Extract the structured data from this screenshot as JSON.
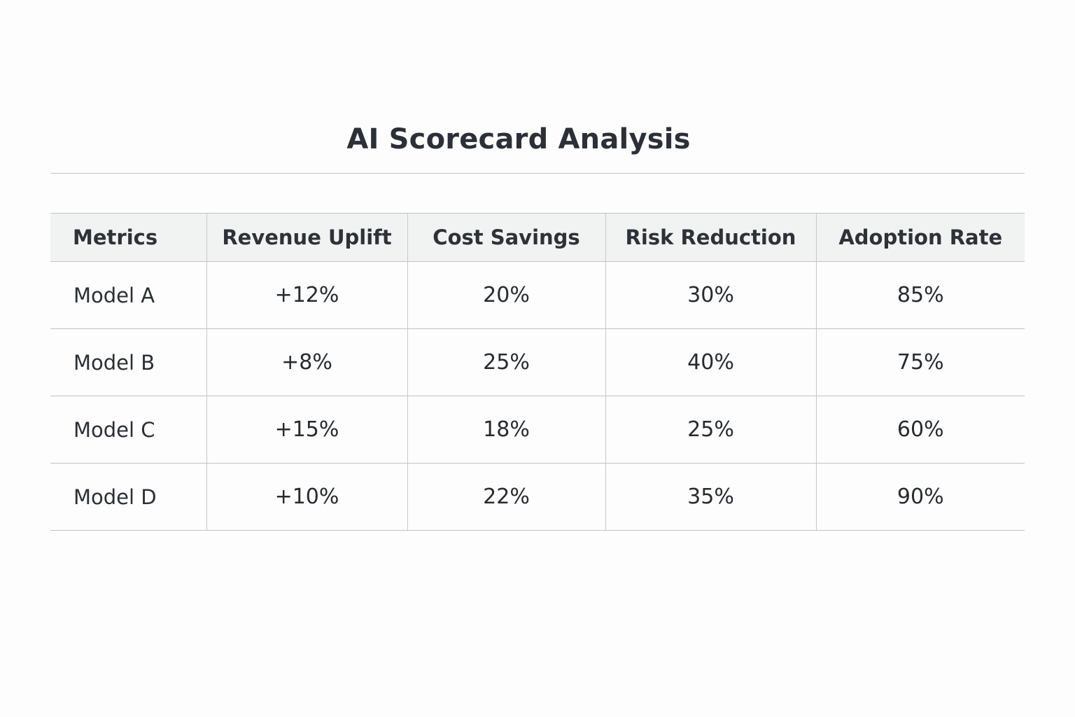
{
  "chart_data": {
    "type": "table",
    "title": "AI Scorecard Analysis",
    "columns": [
      "Metrics",
      "Revenue Uplift",
      "Cost Savings",
      "Risk Reduction",
      "Adoption Rate"
    ],
    "rows": [
      {
        "label": "Model A",
        "values": [
          "+12%",
          "20%",
          "30%",
          "85%"
        ]
      },
      {
        "label": "Model B",
        "values": [
          "+8%",
          "25%",
          "40%",
          "75%"
        ]
      },
      {
        "label": "Model C",
        "values": [
          "+15%",
          "18%",
          "25%",
          "60%"
        ]
      },
      {
        "label": "Model D",
        "values": [
          "+10%",
          "22%",
          "35%",
          "90%"
        ]
      }
    ]
  },
  "colors": {
    "background": "#fdfdfd",
    "header_background": "#f1f2f2",
    "rule": "#c2c2c2",
    "text": "#2a2f36"
  }
}
